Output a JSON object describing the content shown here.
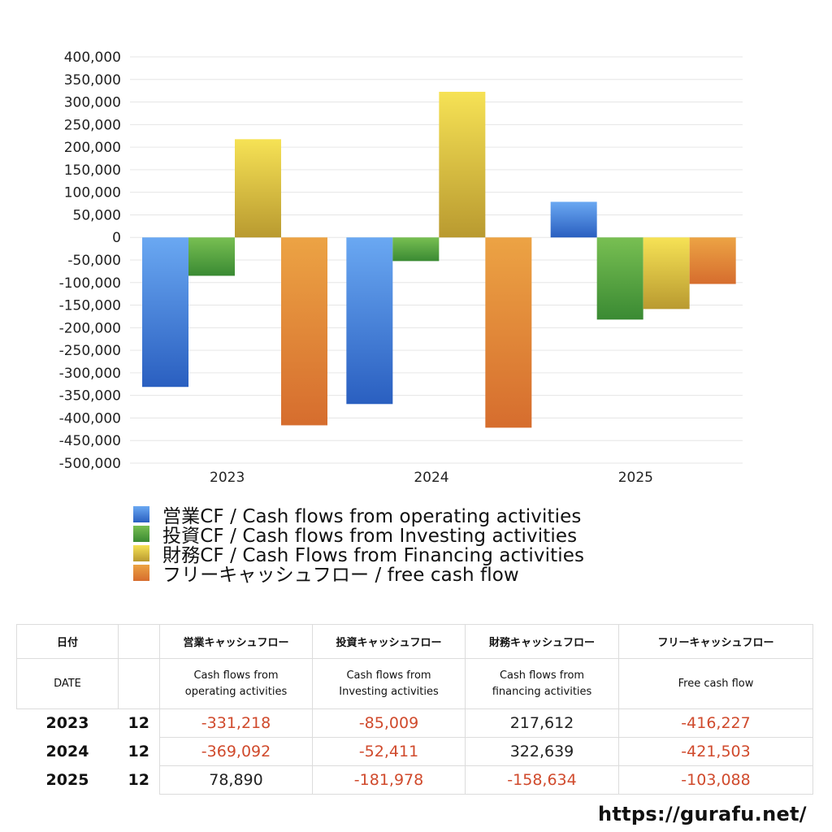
{
  "chart_data": {
    "type": "bar",
    "categories": [
      "2023",
      "2024",
      "2025"
    ],
    "series": [
      {
        "name": "営業CF / Cash flows from operating activities",
        "values": [
          -331218,
          -369092,
          78890
        ]
      },
      {
        "name": "投資CF / Cash flows from Investing activities",
        "values": [
          -85009,
          -52411,
          -181978
        ]
      },
      {
        "name": "財務CF / Cash Flows from Financing activities",
        "values": [
          217612,
          322639,
          -158634
        ]
      },
      {
        "name": "フリーキャッシュフロー / free cash flow",
        "values": [
          -416227,
          -421503,
          -103088
        ]
      }
    ],
    "ylim": [
      -500000,
      400000
    ],
    "yticks": [
      "400,000",
      "350,000",
      "300,000",
      "250,000",
      "200,000",
      "150,000",
      "100,000",
      "50,000",
      "0",
      "-50,000",
      "-100,000",
      "-150,000",
      "-200,000",
      "-250,000",
      "-300,000",
      "-350,000",
      "-400,000",
      "-450,000",
      "-500,000"
    ],
    "grid": true,
    "legend": "bottom",
    "colors": {
      "operating": [
        "#6aa8f2",
        "#2a5fc0"
      ],
      "investing": [
        "#78bf52",
        "#3a8a33"
      ],
      "financing": [
        "#f6e255",
        "#b99a30"
      ],
      "free": [
        "#eca344",
        "#d66d2e"
      ]
    }
  },
  "table": {
    "header1": [
      "日付",
      "",
      "営業キャッシュフロー",
      "投資キャッシュフロー",
      "財務キャッシュフロー",
      "フリーキャッシュフロー"
    ],
    "header2": {
      "date": "DATE",
      "op": [
        "Cash flows from",
        "operating activities"
      ],
      "inv": [
        "Cash flows from",
        "Investing activities"
      ],
      "fin": [
        "Cash flows from",
        "financing activities"
      ],
      "free": "Free cash flow"
    },
    "rows": [
      {
        "year": "2023",
        "month": "12",
        "op": "-331,218",
        "inv": "-85,009",
        "fin": "217,612",
        "free": "-416,227"
      },
      {
        "year": "2024",
        "month": "12",
        "op": "-369,092",
        "inv": "-52,411",
        "fin": "322,639",
        "free": "-421,503"
      },
      {
        "year": "2025",
        "month": "12",
        "op": "78,890",
        "inv": "-181,978",
        "fin": "-158,634",
        "free": "-103,088"
      }
    ]
  },
  "footer": {
    "url": "https://gurafu.net/"
  }
}
